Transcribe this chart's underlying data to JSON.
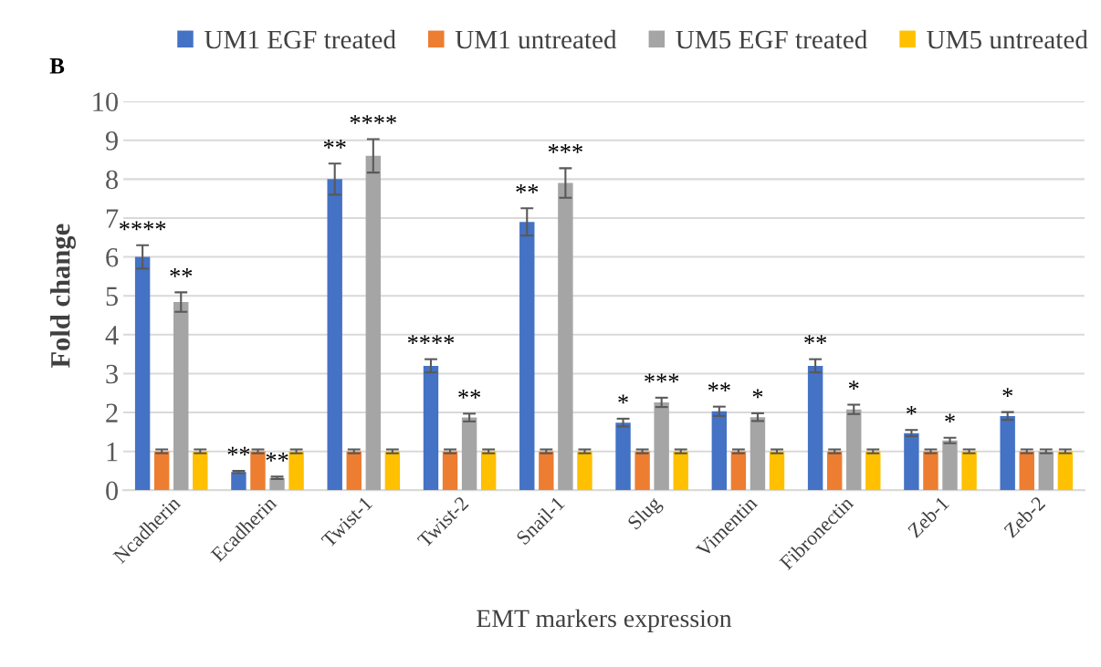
{
  "chart_data": {
    "type": "bar",
    "xlabel": "EMT markers expression",
    "ylabel": "Fold change",
    "categories": [
      "Ncadherin",
      "Ecadherin",
      "Twist-1",
      "Twist-2",
      "Snail-1",
      "Slug",
      "Vimentin",
      "Fibronectin",
      "Zeb-1",
      "Zeb-2"
    ],
    "series": [
      {
        "name": "UM1 EGF treated",
        "color": "#4472c4",
        "values": [
          6.0,
          0.47,
          8.0,
          3.2,
          6.9,
          1.74,
          2.03,
          3.2,
          1.47,
          1.91
        ],
        "errors": [
          0.3,
          0.03,
          0.4,
          0.17,
          0.35,
          0.1,
          0.12,
          0.17,
          0.08,
          0.1
        ],
        "value_labels": [
          "****",
          "**",
          "**",
          "****",
          "**",
          "*",
          "**",
          "**",
          "*",
          "*"
        ]
      },
      {
        "name": "UM1 untreated",
        "color": "#ed7d31",
        "values": [
          1,
          1,
          1,
          1,
          1,
          1,
          1,
          1,
          1,
          1
        ],
        "errors": [
          0.05,
          0.05,
          0.05,
          0.05,
          0.05,
          0.05,
          0.05,
          0.05,
          0.05,
          0.05
        ]
      },
      {
        "name": "UM5 EGF treated",
        "color": "#a5a5a5",
        "values": [
          4.84,
          0.32,
          8.6,
          1.87,
          7.9,
          2.26,
          1.88,
          2.08,
          1.28,
          1.0
        ],
        "errors": [
          0.25,
          0.03,
          0.43,
          0.1,
          0.38,
          0.12,
          0.1,
          0.12,
          0.07,
          0.05
        ],
        "value_labels": [
          "**",
          "**",
          "****",
          "**",
          "***",
          "***",
          "*",
          "*",
          "*",
          null
        ]
      },
      {
        "name": "UM5 untreated",
        "color": "#ffc000",
        "values": [
          1,
          1,
          1,
          1,
          1,
          1,
          1,
          1,
          1,
          1
        ],
        "errors": [
          0.05,
          0.05,
          0.05,
          0.05,
          0.05,
          0.05,
          0.05,
          0.05,
          0.05,
          0.05
        ]
      }
    ],
    "ylim": [
      0,
      10
    ],
    "yticks": [
      0,
      1,
      2,
      3,
      4,
      5,
      6,
      7,
      8,
      9,
      10
    ],
    "grid": "y",
    "legend": "top",
    "annotations": [
      "B"
    ]
  }
}
